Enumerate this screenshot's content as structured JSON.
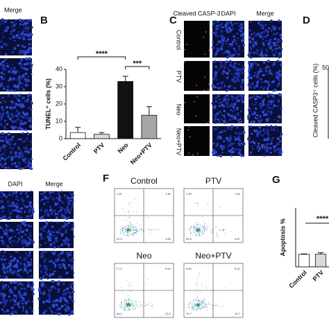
{
  "panel_a": {
    "header": "Merge"
  },
  "panel_b": {
    "label": "B",
    "chart_data": {
      "type": "bar",
      "y_label": "TUNEL⁺ cells (%)",
      "categories": [
        "Control",
        "PTV",
        "Neo",
        "Neo+PTV"
      ],
      "values": [
        3.5,
        2.5,
        33,
        13.5
      ],
      "errors": [
        3,
        1,
        3,
        5
      ],
      "colors": [
        "#ffffff",
        "#d9d9d9",
        "#111111",
        "#a6a6a6"
      ],
      "ylim": [
        0,
        40
      ],
      "yticks": [
        0,
        10,
        20,
        30,
        40
      ],
      "significance": [
        {
          "from": 0,
          "to": 2,
          "label": "****"
        },
        {
          "from": 2,
          "to": 3,
          "label": "***"
        }
      ]
    }
  },
  "panel_c": {
    "label": "C",
    "columns": [
      "Cleaved CASP-3",
      "DAPI",
      "Merge"
    ],
    "rows": [
      "Control",
      "PTV",
      "Neo",
      "Neo+PTV"
    ]
  },
  "panel_d": {
    "label": "D",
    "y_label": "Cleaved CASP3⁺ cells (%)",
    "tick": "50"
  },
  "panel_e": {
    "columns": [
      "DAPI",
      "Merge"
    ]
  },
  "panel_f": {
    "label": "F",
    "plots": [
      {
        "title": "Control",
        "quadrants": [
          "1.40",
          "1.46",
          "92.5",
          "4.68"
        ]
      },
      {
        "title": "PTV",
        "quadrants": [
          "1.59",
          "1.63",
          "89.8",
          "6.87"
        ]
      },
      {
        "title": "Neo",
        "quadrants": [
          "2.74",
          "5.64",
          "68.0",
          "23.4"
        ]
      },
      {
        "title": "Neo+PTV",
        "quadrants": [
          "6.84",
          "6.24",
          "79.7",
          "12.7"
        ]
      }
    ]
  },
  "panel_g": {
    "label": "G",
    "chart_data": {
      "type": "bar",
      "y_label": "Apoptosis %",
      "categories": [
        "Control",
        "PTV"
      ],
      "values": [
        8.5,
        8.6
      ],
      "errors": [
        0.3,
        1
      ],
      "colors": [
        "#ffffff",
        "#d9d9d9"
      ],
      "ylim": [
        0,
        40
      ],
      "significance_label": "****"
    }
  }
}
